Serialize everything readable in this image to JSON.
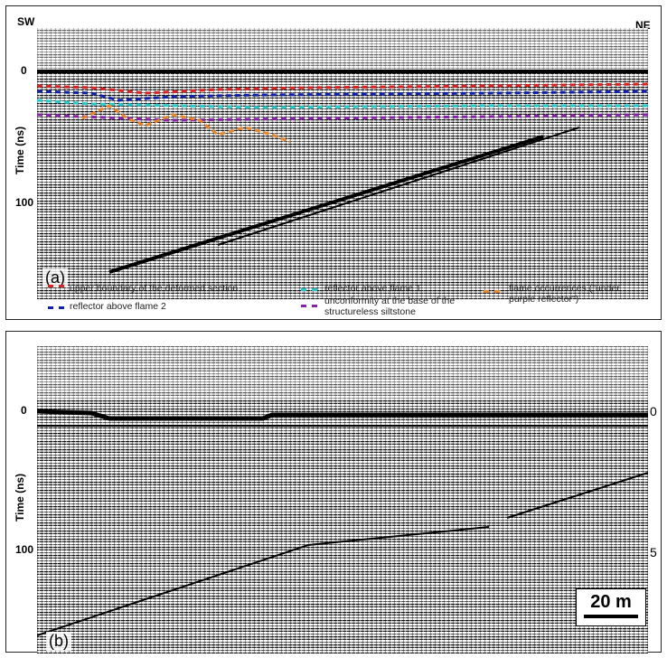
{
  "panel_a": {
    "left_label": "SW",
    "right_label": "NE",
    "y_axis_title": "Time (ns)",
    "y_ticks": [
      "0",
      "100"
    ],
    "panel_label": "(a)",
    "legend": [
      "upper boundary of the deformed section",
      "reflector above flame 2",
      "reflector above flame 1",
      "unconformity at the base of the structureless siltstone",
      "flame occurrences (\"under purple reflector\")"
    ]
  },
  "panel_b": {
    "y_axis_title": "Time (ns)",
    "y_ticks": [
      "0",
      "100"
    ],
    "right_ticks": [
      "0",
      "5"
    ],
    "panel_label": "(b)",
    "scale_bar": "20 m"
  }
}
